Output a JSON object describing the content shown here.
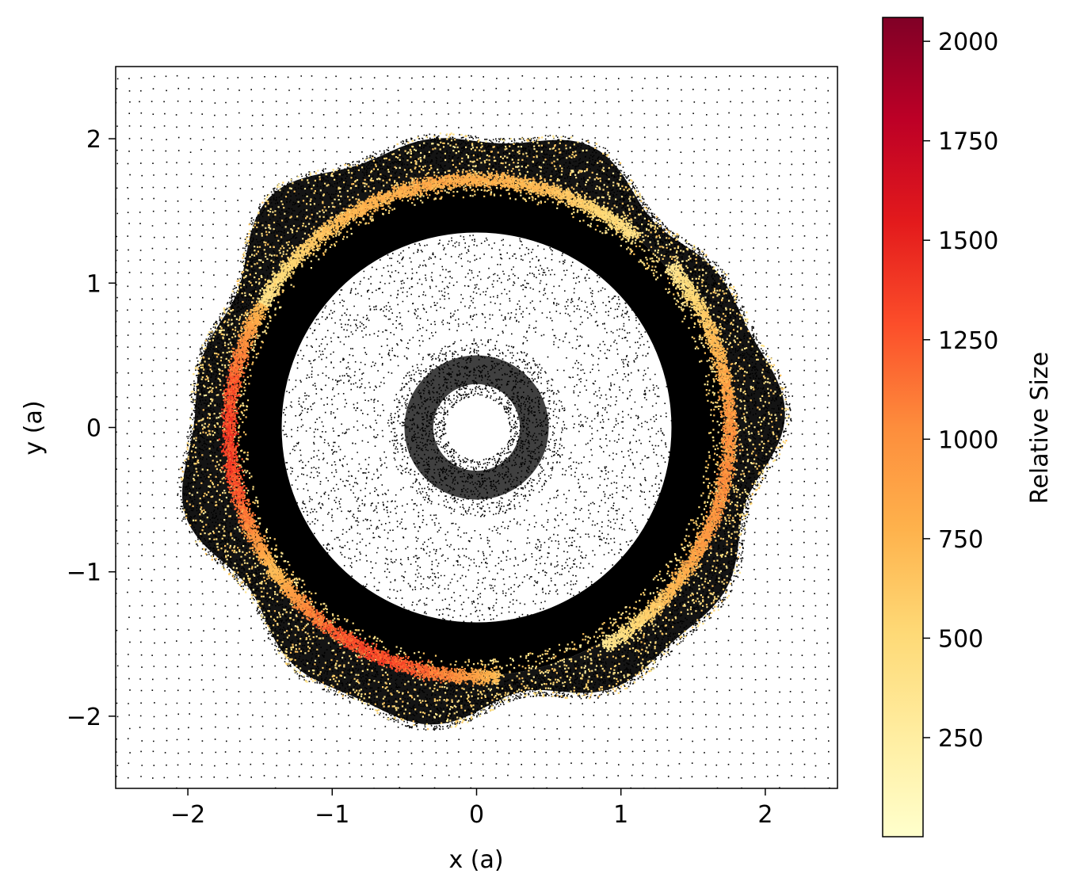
{
  "chart_data": {
    "type": "scatter",
    "xlabel": "x (a)",
    "ylabel": "y (a)",
    "xlim": [
      -2.5,
      2.5
    ],
    "ylim": [
      -2.5,
      2.5
    ],
    "xticks": [
      -2,
      -1,
      0,
      1,
      2
    ],
    "yticks": [
      -2,
      -1,
      0,
      1,
      2
    ],
    "xtick_labels": [
      "−2",
      "−1",
      "0",
      "1",
      "2"
    ],
    "ytick_labels": [
      "−2",
      "−1",
      "0",
      "1",
      "2"
    ],
    "grid": false,
    "colorbar": {
      "label": "Relative Size",
      "colormap": "YlOrRd",
      "range": [
        1,
        2060
      ],
      "ticks": [
        250,
        500,
        750,
        1000,
        1250,
        1500,
        1750,
        2000
      ],
      "tick_labels": [
        "250",
        "500",
        "750",
        "1000",
        "1250",
        "1500",
        "1750",
        "2000"
      ],
      "colors": [
        "#ffffcc",
        "#ffeda0",
        "#fed976",
        "#feb24c",
        "#fd8d3c",
        "#fc4e2a",
        "#e31a1c",
        "#bd0026",
        "#800026"
      ]
    },
    "series": [
      {
        "marker_color": "#000000",
        "structures": [
          {
            "kind": "background grid particles",
            "r_min": 2.0,
            "r_max": 3.5,
            "density": "sparse"
          },
          {
            "kind": "outer clumpy envelope",
            "r_inner": 1.75,
            "r_outer": 2.15,
            "density": "dense"
          },
          {
            "kind": "dense ring",
            "r_inner": 1.35,
            "r_outer": 1.72
          },
          {
            "kind": "cavity",
            "r_inner": 0.65,
            "r_outer": 1.35,
            "density": "sparse"
          },
          {
            "kind": "inner ring",
            "r_inner": 0.22,
            "r_outer": 0.62
          },
          {
            "kind": "central hole",
            "r_outer": 0.22
          }
        ]
      },
      {
        "colored_by": "Relative Size",
        "structures": [
          {
            "kind": "yellow particles across outer envelope",
            "r_inner": 1.6,
            "r_outer": 2.1,
            "size_range": [
              250,
              700
            ]
          },
          {
            "kind": "top arc",
            "angle_range_deg": [
              50,
              150
            ],
            "r": 1.72,
            "size_range": [
              400,
              900
            ]
          },
          {
            "kind": "left arc",
            "angle_range_deg": [
              150,
              215
            ],
            "r": 1.72,
            "size_range": [
              700,
              1500
            ]
          },
          {
            "kind": "lower-left arc",
            "angle_range_deg": [
              215,
              275
            ],
            "r": 1.72,
            "size_range": [
              700,
              1450
            ]
          },
          {
            "kind": "right arc",
            "angle_range_deg": [
              -60,
              40
            ],
            "r": 1.75,
            "size_range": [
              350,
              1100
            ]
          }
        ]
      }
    ]
  }
}
